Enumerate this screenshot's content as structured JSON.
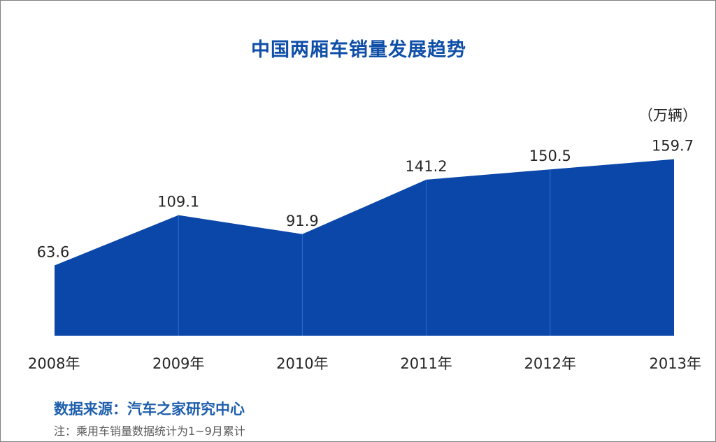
{
  "title": "中国两厢车销量发展趋势",
  "source": "数据来源：汽车之家研究中心",
  "note": "注：乘用车销量数据统计为1~9月累计",
  "colors": {
    "area": "#0a47a9",
    "divider": "#2c6fd1",
    "title": "#0f4fa8"
  },
  "chart_data": {
    "type": "area",
    "title": "中国两厢车销量发展趋势",
    "unit": "（万辆）",
    "categories": [
      "2008年",
      "2009年",
      "2010年",
      "2011年",
      "2012年",
      "2013年"
    ],
    "values": [
      63.6,
      109.1,
      91.9,
      141.2,
      150.5,
      159.7
    ],
    "data_labels": [
      "63.6",
      "109.1",
      "91.9",
      "141.2",
      "150.5",
      "159.7"
    ],
    "ylim": [
      0,
      160
    ],
    "grid": false,
    "legend": "none"
  }
}
